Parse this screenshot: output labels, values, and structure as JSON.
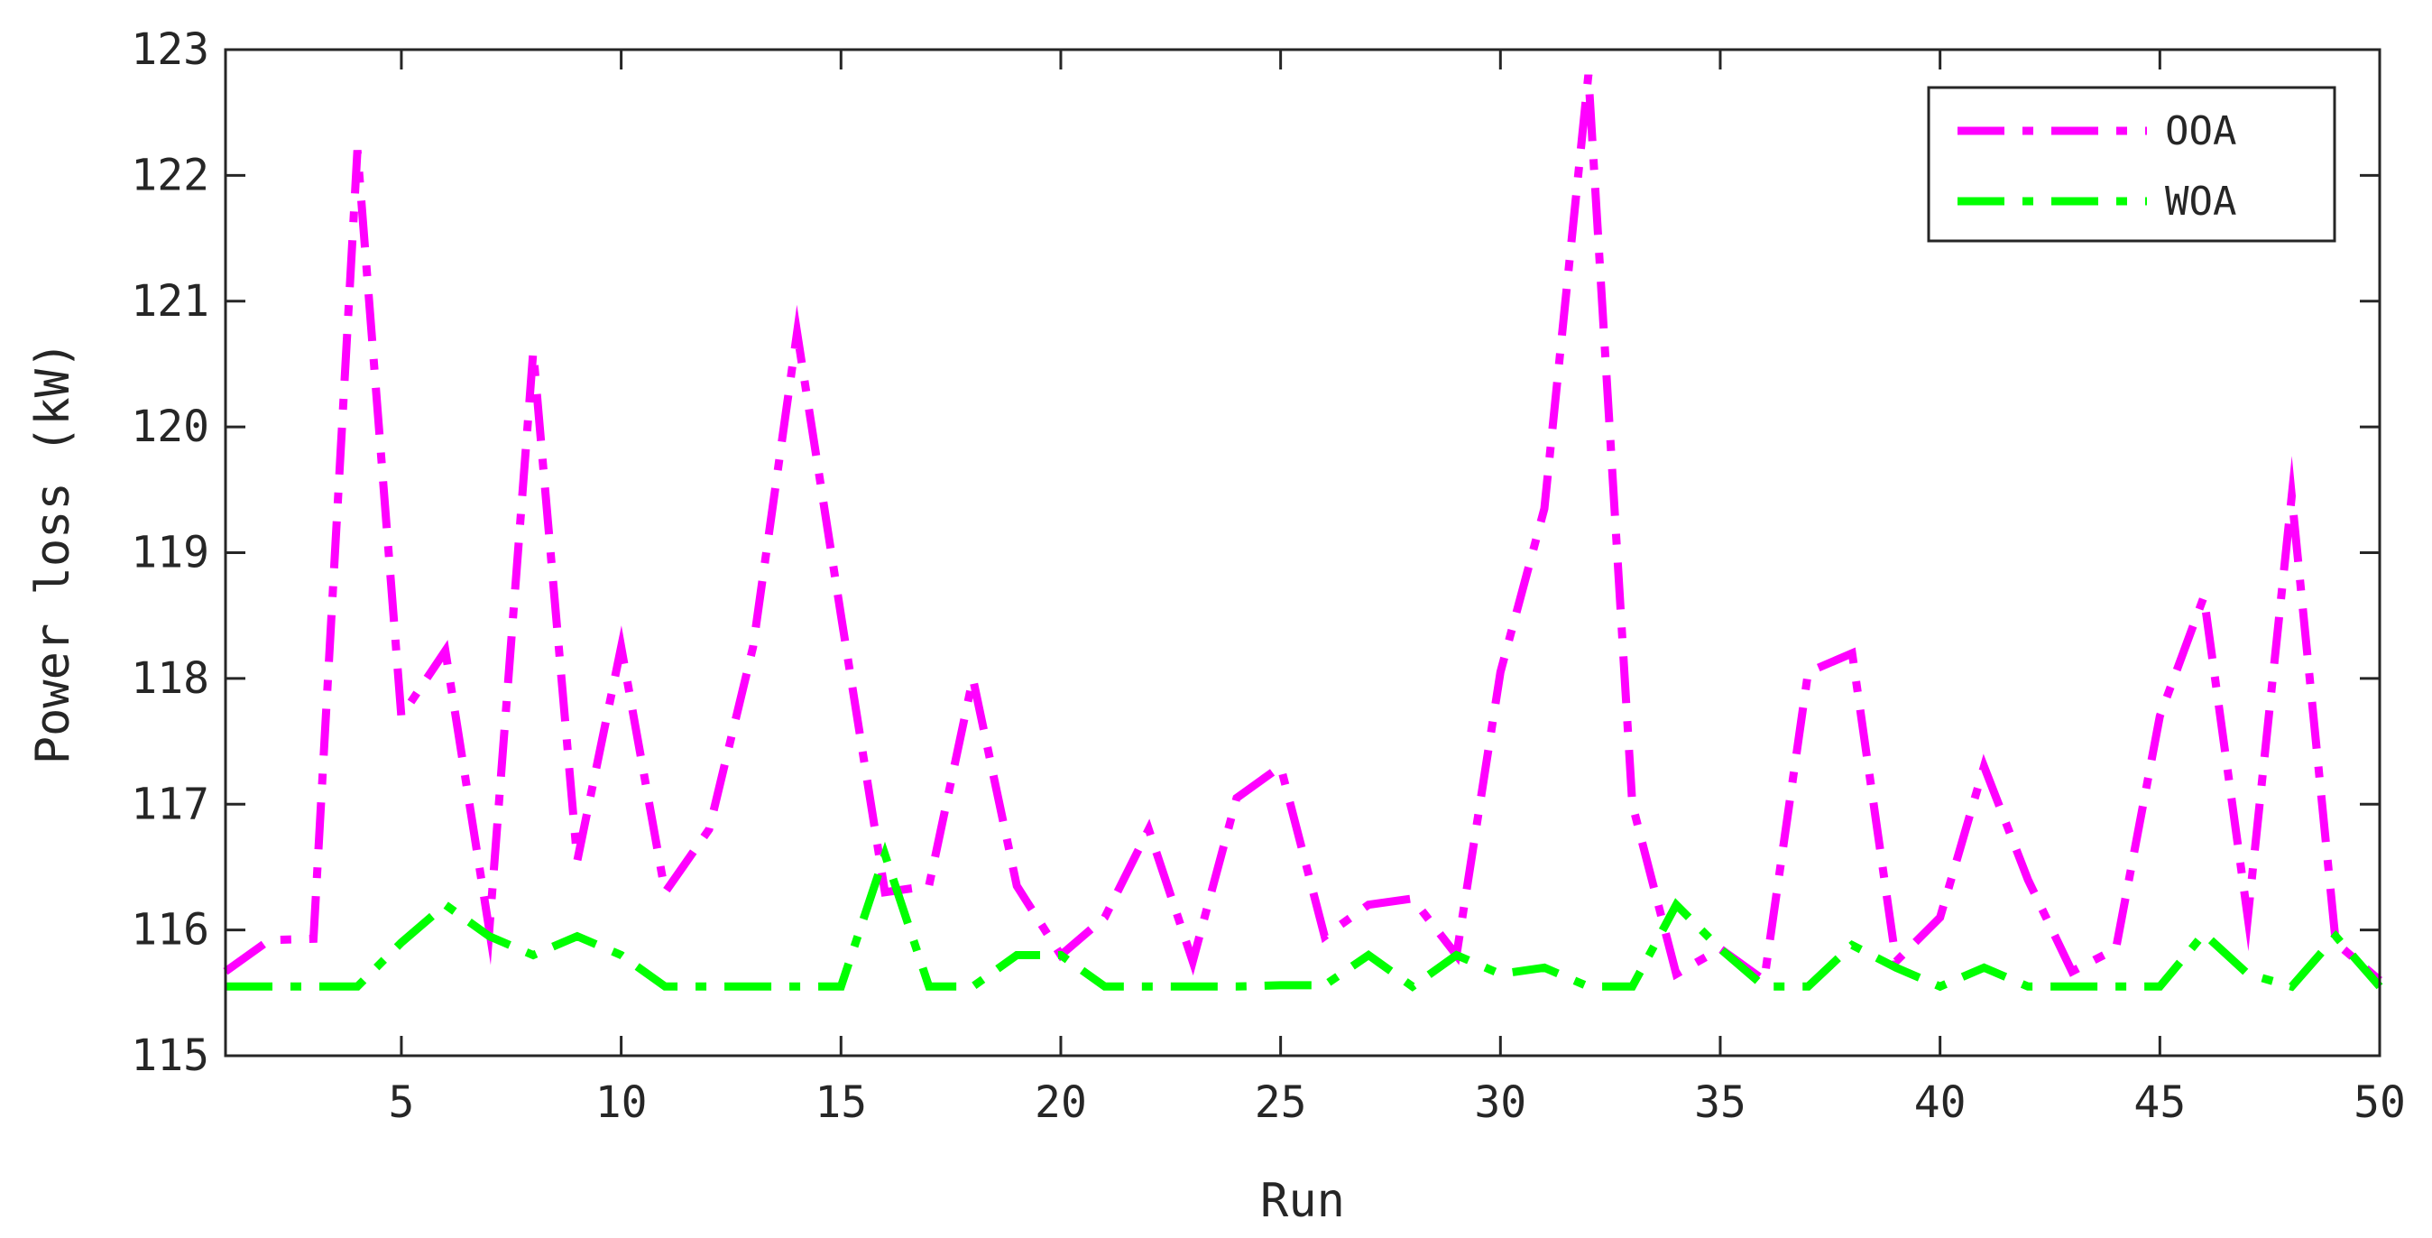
{
  "chart_data": {
    "type": "line",
    "xlabel": "Run",
    "ylabel": "Power loss (kW)",
    "xlim": [
      1,
      50
    ],
    "ylim": [
      115,
      123
    ],
    "xticks": [
      5,
      10,
      15,
      20,
      25,
      30,
      35,
      40,
      45,
      50
    ],
    "yticks": [
      115,
      116,
      117,
      118,
      119,
      120,
      121,
      122,
      123
    ],
    "grid": false,
    "legend_position": "top-right",
    "x": [
      1,
      2,
      3,
      4,
      5,
      6,
      7,
      8,
      9,
      10,
      11,
      12,
      13,
      14,
      15,
      16,
      17,
      18,
      19,
      20,
      21,
      22,
      23,
      24,
      25,
      26,
      27,
      28,
      29,
      30,
      31,
      32,
      33,
      34,
      35,
      36,
      37,
      38,
      39,
      40,
      41,
      42,
      43,
      44,
      45,
      46,
      47,
      48,
      49,
      50
    ],
    "series": [
      {
        "name": "OOA",
        "color": "#ff00ff",
        "style": "dash-dot",
        "values": [
          115.67,
          115.92,
          115.93,
          122.2,
          117.7,
          118.22,
          116.0,
          120.6,
          116.55,
          118.25,
          116.3,
          116.8,
          118.25,
          120.75,
          118.5,
          116.3,
          116.35,
          118.0,
          116.35,
          115.8,
          116.1,
          116.8,
          115.75,
          117.05,
          117.3,
          115.95,
          116.2,
          116.25,
          115.8,
          118.05,
          119.35,
          122.8,
          117.0,
          115.65,
          115.85,
          115.6,
          118.05,
          118.2,
          115.75,
          116.1,
          117.3,
          116.4,
          115.67,
          115.85,
          117.7,
          118.65,
          116.1,
          119.45,
          115.9,
          115.6
        ]
      },
      {
        "name": "WOA",
        "color": "#00ff00",
        "style": "dash-dot",
        "values": [
          115.55,
          115.55,
          115.55,
          115.55,
          115.9,
          116.2,
          115.95,
          115.8,
          115.95,
          115.8,
          115.55,
          115.55,
          115.55,
          115.55,
          115.55,
          116.6,
          115.55,
          115.55,
          115.8,
          115.8,
          115.55,
          115.55,
          115.55,
          115.55,
          115.56,
          115.56,
          115.8,
          115.55,
          115.8,
          115.65,
          115.7,
          115.55,
          115.55,
          116.2,
          115.85,
          115.55,
          115.55,
          115.88,
          115.7,
          115.55,
          115.7,
          115.55,
          115.55,
          115.55,
          115.55,
          115.97,
          115.65,
          115.55,
          115.95,
          115.55
        ]
      }
    ]
  }
}
